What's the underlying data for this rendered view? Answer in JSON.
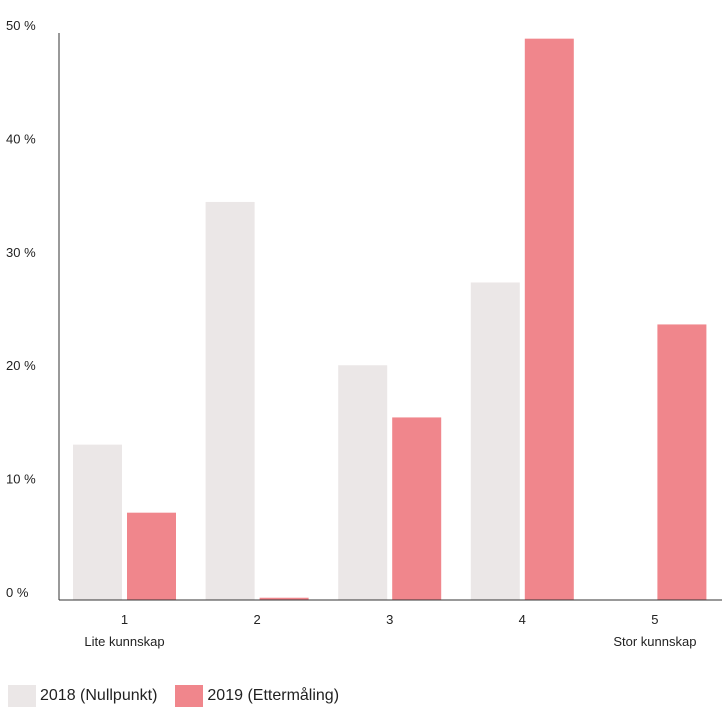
{
  "chart_data": {
    "type": "bar",
    "categories": [
      "1",
      "2",
      "3",
      "4",
      "5"
    ],
    "category_sublabels": [
      "Lite kunnskap",
      "",
      "",
      "",
      "Stor kunnskap"
    ],
    "series": [
      {
        "name": "2018  (Nullpunkt)",
        "color": "#ebe7e7",
        "values": [
          13.7,
          35.1,
          20.7,
          28.0,
          0
        ]
      },
      {
        "name": "2019 (Ettermåling)",
        "color": "#f0868c",
        "values": [
          7.7,
          0.2,
          16.1,
          49.5,
          24.3
        ]
      }
    ],
    "yticks": [
      "0 %",
      "10 %",
      "20 %",
      "30 %",
      "40 %",
      "50 %"
    ],
    "ylim": [
      0,
      50
    ],
    "xlabel": "",
    "ylabel": "",
    "grid": false,
    "legend_position": "bottom-left"
  }
}
